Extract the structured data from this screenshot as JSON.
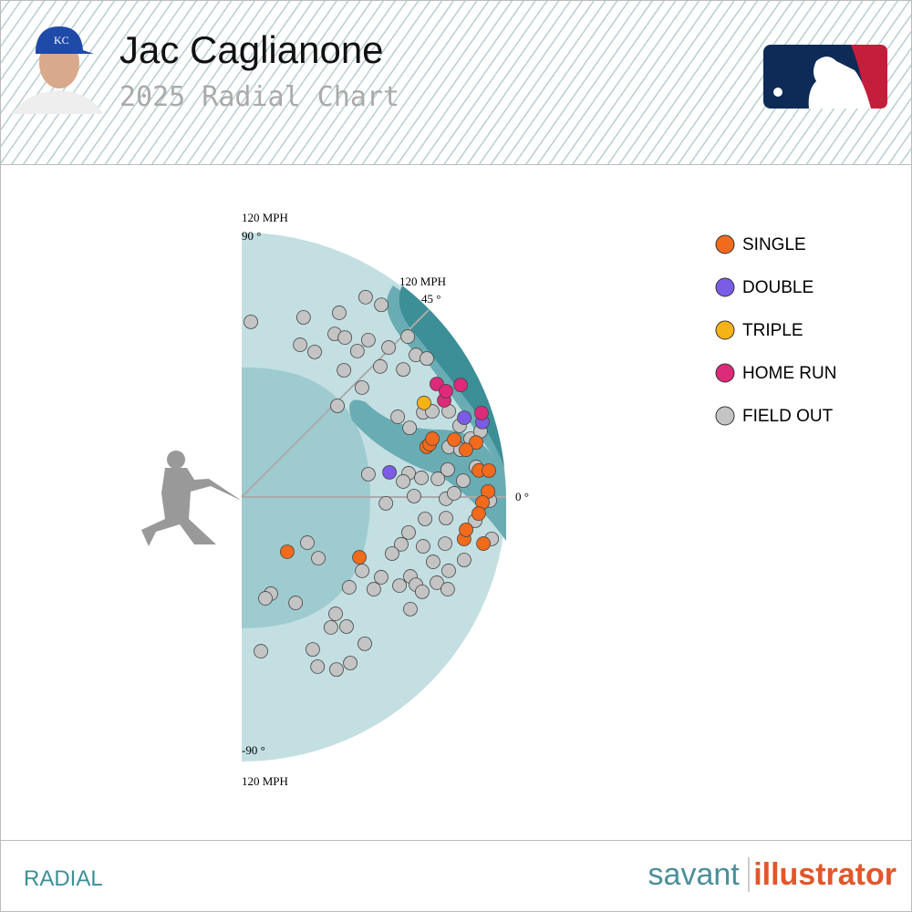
{
  "header": {
    "title": "Jac Caglianone",
    "subtitle": "2025 Radial Chart"
  },
  "footer": {
    "label": "RADIAL",
    "brand": "savant",
    "brand_suffix": "illustrator"
  },
  "chart_data": {
    "type": "radial",
    "rlim": [
      0,
      120
    ],
    "rticks": [
      {
        "value": 120,
        "label": "120 MPH"
      }
    ],
    "angle_ticks": [
      {
        "value": 90,
        "label": "90 °"
      },
      {
        "value": 45,
        "label": "45 °"
      },
      {
        "value": 0,
        "label": "0 °"
      },
      {
        "value": -90,
        "label": "-90 °"
      }
    ],
    "series": [
      {
        "name": "SINGLE",
        "color": "#f26b1d",
        "exit_velocity": [
          32.3,
          60.0,
          87.0,
          88.6,
          90.5,
          99.9,
          109.2,
          104.0,
          108.3,
          112.8,
          111.8,
          109.3,
          107.8,
          102.7,
          111.7,
          102.9
        ],
        "launch_angle": [
          -50.2,
          -27.1,
          15.2,
          15.7,
          17.0,
          15.1,
          13.1,
          11.9,
          6.4,
          6.1,
          1.3,
          -1.3,
          -4.0,
          -10.7,
          -10.9,
          -8.3
        ]
      },
      {
        "name": "DOUBLE",
        "color": "#7b5ce6",
        "exit_velocity": [
          68.0,
          107.2,
          114.4
        ],
        "launch_angle": [
          9.5,
          19.6,
          17.3
        ]
      },
      {
        "name": "TRIPLE",
        "color": "#f5b316",
        "exit_velocity": [
          93.1
        ],
        "launch_angle": [
          27.3
        ]
      },
      {
        "name": "HOME RUN",
        "color": "#dd2a7b",
        "exit_velocity": [
          102.3,
          111.6,
          101.8,
          115.3,
          104.4
        ],
        "launch_angle": [
          30.1,
          27.1,
          25.5,
          19.3,
          27.4
        ]
      },
      {
        "name": "FIELD OUT",
        "color": "#c4c4c4",
        "exit_velocity": [
          79.6,
          86.2,
          94.6,
          106.7,
          107.8,
          74.0,
          73.7,
          85.2,
          86.2,
          84.5,
          91.5,
          95.1,
          104.8,
          73.9,
          86.4,
          93.4,
          102.0,
          104.9,
          73.8,
          60.0,
          79.6,
          82.4,
          90.9,
          94.8,
          101.7,
          104.0,
          107.2,
          112.4,
          96.7,
          101.6,
          58.4,
          76.5,
          73.6,
          82.0,
          89.4,
          94.3,
          100.8,
          107.2,
          78.2,
          92.7,
          96.4,
          112.6,
          65.5,
          83.8,
          93.2,
          106.5,
          77.4,
          85.3,
          94.7,
          115.0,
          75.5,
          72.9,
          91.7,
          104.9,
          44.5,
          36.3,
          64.1,
          73.0,
          84.6,
          88.5,
          96.7,
          99.7,
          63.7,
          73.1,
          82.1,
          92.5,
          102.4,
          91.9,
          45.8,
          47.2,
          53.9,
          68.0,
          75.6,
          71.7,
          86.9,
          70.5,
          76.3,
          84.3,
          89.3,
          90.0
        ],
        "launch_angle": [
          87.0,
          71.0,
          62.1,
          58.2,
          54.0,
          69.0,
          63.3,
          60.3,
          57.1,
          51.6,
          51.1,
          45.5,
          44.0,
          51.1,
          43.3,
          38.3,
          39.2,
          36.8,
          42.3,
          43.6,
          27.2,
          22.4,
          25.0,
          24.2,
          22.5,
          18.1,
          14.3,
          15.4,
          13.6,
          12.2,
          10.2,
          8.1,
          5.5,
          6.1,
          5.3,
          7.6,
          4.2,
          7.3,
          0.3,
          -0.5,
          1.0,
          -0.8,
          -2.5,
          -6.8,
          -5.9,
          -5.8,
          -12.0,
          -15.2,
          -12.9,
          -9.5,
          -16.5,
          -20.6,
          -18.7,
          -15.8,
          -38.6,
          -34.8,
          -31.5,
          -29.9,
          -25.2,
          -26.7,
          -23.7,
          -19.6,
          -40.0,
          -34.9,
          -29.3,
          -27.7,
          -24.1,
          -33.6,
          -73.2,
          -76.8,
          -63.0,
          -51.2,
          -51.0,
          -55.6,
          -50.0,
          -82.9,
          -65.0,
          -65.9,
          -61.2,
          -56.8
        ]
      }
    ]
  }
}
